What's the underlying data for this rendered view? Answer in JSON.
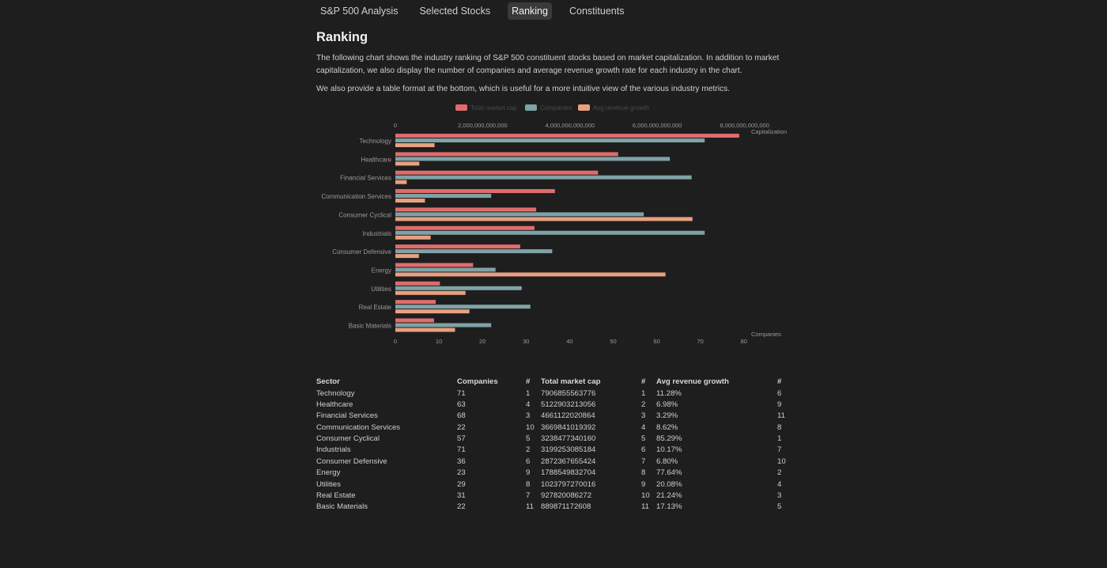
{
  "tabs": [
    {
      "label": "S&P 500 Analysis",
      "active": false
    },
    {
      "label": "Selected Stocks",
      "active": false
    },
    {
      "label": "Ranking",
      "active": true
    },
    {
      "label": "Constituents",
      "active": false
    }
  ],
  "heading": "Ranking",
  "paragraphs": [
    "The following chart shows the industry ranking of S&P 500 constituent stocks based on market capitalization. In addition to market capitalization, we also display the number of companies and average revenue growth rate for each industry in the chart.",
    "We also provide a table format at the bottom, which is useful for a more intuitive view of the various industry metrics."
  ],
  "colors": {
    "market_cap": "#e06c6c",
    "companies": "#7fa2a6",
    "revenue_growth": "#e8a080"
  },
  "chart_data": {
    "type": "bar",
    "orientation": "horizontal",
    "categories": [
      "Technology",
      "Healthcare",
      "Financial Services",
      "Communication Services",
      "Consumer Cyclical",
      "Industrials",
      "Consumer Defensive",
      "Energy",
      "Utilities",
      "Real Estate",
      "Basic Materials"
    ],
    "series": [
      {
        "name": "Total market cap",
        "axis": "top",
        "values": [
          7906855563776,
          5122903213056,
          4661122020864,
          3669841019392,
          3238477340160,
          3199253085184,
          2872367655424,
          1788549832704,
          1023797270016,
          927820086272,
          889871172608
        ]
      },
      {
        "name": "Companies",
        "axis": "bottom",
        "values": [
          71,
          63,
          68,
          22,
          57,
          71,
          36,
          23,
          29,
          31,
          22
        ]
      },
      {
        "name": "Avg revenue growth",
        "axis": "bottom",
        "values": [
          9,
          5.5,
          2.6,
          6.8,
          68.2,
          8.1,
          5.4,
          62.0,
          16.1,
          17.0,
          13.7
        ]
      }
    ],
    "top_axis": {
      "label": "Capitalization",
      "ticks": [
        "0",
        "2,000,000,000,000",
        "4,000,000,000,000",
        "6,000,000,000,000",
        "8,000,000,000,000"
      ],
      "range": [
        0,
        8000000000000
      ]
    },
    "bottom_axis": {
      "label": "Companies",
      "ticks": [
        "0",
        "10",
        "20",
        "30",
        "40",
        "50",
        "60",
        "70",
        "80"
      ],
      "range": [
        0,
        80
      ]
    },
    "legend_position": "top"
  },
  "table": {
    "headers": [
      "Sector",
      "Companies",
      "#",
      "Total market cap",
      "#",
      "Avg revenue growth",
      "#"
    ],
    "rows": [
      [
        "Technology",
        "71",
        "1",
        "7906855563776",
        "1",
        "11.28%",
        "6"
      ],
      [
        "Healthcare",
        "63",
        "4",
        "5122903213056",
        "2",
        "6.98%",
        "9"
      ],
      [
        "Financial Services",
        "68",
        "3",
        "4661122020864",
        "3",
        "3.29%",
        "11"
      ],
      [
        "Communication Services",
        "22",
        "10",
        "3669841019392",
        "4",
        "8.62%",
        "8"
      ],
      [
        "Consumer Cyclical",
        "57",
        "5",
        "3238477340160",
        "5",
        "85.29%",
        "1"
      ],
      [
        "Industrials",
        "71",
        "2",
        "3199253085184",
        "6",
        "10.17%",
        "7"
      ],
      [
        "Consumer Defensive",
        "36",
        "6",
        "2872367655424",
        "7",
        "6.80%",
        "10"
      ],
      [
        "Energy",
        "23",
        "9",
        "1788549832704",
        "8",
        "77.64%",
        "2"
      ],
      [
        "Utilities",
        "29",
        "8",
        "1023797270016",
        "9",
        "20.08%",
        "4"
      ],
      [
        "Real Estate",
        "31",
        "7",
        "927820086272",
        "10",
        "21.24%",
        "3"
      ],
      [
        "Basic Materials",
        "22",
        "11",
        "889871172608",
        "11",
        "17.13%",
        "5"
      ]
    ]
  }
}
